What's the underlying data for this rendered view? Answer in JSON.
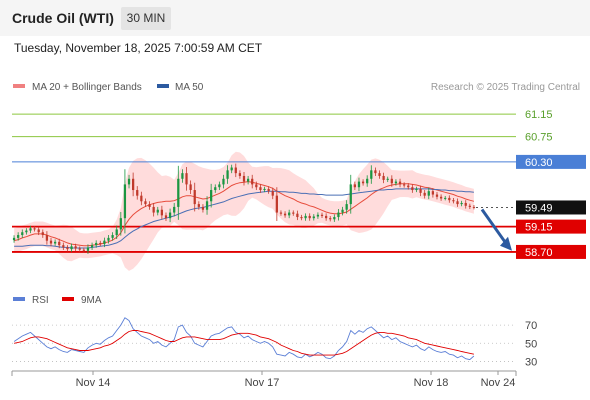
{
  "header": {
    "title": "Crude Oil (WTI)",
    "timeframe": "30 MIN"
  },
  "datetime": "Tuesday, November 18, 2025 7:00:59 AM CET",
  "legend": {
    "ma20": "MA 20 + Bollinger Bands",
    "ma50": "MA 50",
    "credit": "Research © 2025 Trading Central"
  },
  "rsi_legend": {
    "rsi": "RSI",
    "ma9": "9MA"
  },
  "colors": {
    "resistance": "#8cc63f",
    "pivot": "#4a7fd6",
    "support": "#e00000",
    "up": "#1a9641",
    "down": "#c0392b",
    "ma20": "#e74c3c",
    "ma50": "#4a6fb5",
    "bands": "#ffd6d6",
    "arrow": "#2c5aa0",
    "rsi": "#5b7fd6",
    "rsi_ma": "#e00000"
  },
  "chart_data": [
    {
      "type": "candlestick",
      "x_ticks": [
        "Nov 14",
        "Nov 17",
        "Nov 18",
        "Nov 24"
      ],
      "ylim": [
        58.45,
        61.4
      ],
      "levels": [
        {
          "value": 61.15,
          "label": "61.15",
          "kind": "resistance"
        },
        {
          "value": 60.75,
          "label": "60.75",
          "kind": "resistance"
        },
        {
          "value": 60.3,
          "label": "60.30",
          "kind": "pivot"
        },
        {
          "value": 59.49,
          "label": "59.49",
          "kind": "last"
        },
        {
          "value": 59.15,
          "label": "59.15",
          "kind": "support"
        },
        {
          "value": 58.7,
          "label": "58.70",
          "kind": "support"
        }
      ],
      "close": [
        58.95,
        59.0,
        59.05,
        59.08,
        59.12,
        59.1,
        59.05,
        59.0,
        58.9,
        58.85,
        58.88,
        58.82,
        58.78,
        58.75,
        58.8,
        58.76,
        58.74,
        58.72,
        58.78,
        58.82,
        58.86,
        58.84,
        58.9,
        58.95,
        59.0,
        59.1,
        59.3,
        59.9,
        60.0,
        59.8,
        59.7,
        59.6,
        59.55,
        59.5,
        59.4,
        59.45,
        59.35,
        59.3,
        59.4,
        59.5,
        60.0,
        60.1,
        59.9,
        59.8,
        59.55,
        59.5,
        59.45,
        59.6,
        59.8,
        59.85,
        59.9,
        60.0,
        60.15,
        60.2,
        60.1,
        60.05,
        59.95,
        60.0,
        59.9,
        59.85,
        59.8,
        59.82,
        59.78,
        59.7,
        59.4,
        59.38,
        59.35,
        59.4,
        59.38,
        59.32,
        59.3,
        59.34,
        59.3,
        59.33,
        59.36,
        59.34,
        59.3,
        59.28,
        59.32,
        59.4,
        59.45,
        59.55,
        59.9,
        59.85,
        59.95,
        59.92,
        60.0,
        60.15,
        60.1,
        60.05,
        59.98,
        60.0,
        59.92,
        59.95,
        59.9,
        59.88,
        59.85,
        59.8,
        59.82,
        59.75,
        59.7,
        59.78,
        59.72,
        59.68,
        59.65,
        59.66,
        59.62,
        59.6,
        59.55,
        59.57,
        59.52,
        59.5,
        59.49
      ],
      "ma20": [
        58.9,
        58.92,
        58.95,
        58.97,
        59.0,
        59.02,
        59.02,
        59.02,
        59.0,
        58.97,
        58.95,
        58.92,
        58.89,
        58.86,
        58.84,
        58.83,
        58.82,
        58.81,
        58.81,
        58.82,
        58.83,
        58.84,
        58.86,
        58.88,
        58.91,
        58.96,
        59.04,
        59.17,
        59.28,
        59.36,
        59.42,
        59.47,
        59.51,
        59.54,
        59.56,
        59.58,
        59.59,
        59.6,
        59.6,
        59.61,
        59.64,
        59.68,
        59.7,
        59.7,
        59.68,
        59.66,
        59.64,
        59.65,
        59.68,
        59.71,
        59.74,
        59.78,
        59.83,
        59.88,
        59.91,
        59.93,
        59.94,
        59.95,
        59.94,
        59.92,
        59.9,
        59.88,
        59.86,
        59.83,
        59.78,
        59.74,
        59.7,
        59.67,
        59.64,
        59.6,
        59.57,
        59.55,
        59.52,
        59.5,
        59.47,
        59.44,
        59.41,
        59.39,
        59.38,
        59.38,
        59.39,
        59.41,
        59.46,
        59.51,
        59.56,
        59.61,
        59.66,
        59.72,
        59.77,
        59.81,
        59.84,
        59.87,
        59.89,
        59.9,
        59.91,
        59.91,
        59.91,
        59.9,
        59.89,
        59.87,
        59.85,
        59.84,
        59.82,
        59.8,
        59.78,
        59.76,
        59.74,
        59.72,
        59.69,
        59.67,
        59.64,
        59.62,
        59.6
      ],
      "ma50": [
        58.8,
        58.8,
        58.8,
        58.81,
        58.82,
        58.82,
        58.82,
        58.82,
        58.81,
        58.81,
        58.8,
        58.79,
        58.78,
        58.78,
        58.77,
        58.77,
        58.77,
        58.77,
        58.77,
        58.78,
        58.79,
        58.8,
        58.81,
        58.82,
        58.84,
        58.86,
        58.9,
        58.96,
        59.02,
        59.07,
        59.11,
        59.15,
        59.18,
        59.21,
        59.24,
        59.26,
        59.28,
        59.3,
        59.32,
        59.34,
        59.37,
        59.4,
        59.43,
        59.45,
        59.47,
        59.48,
        59.49,
        59.51,
        59.53,
        59.55,
        59.57,
        59.59,
        59.62,
        59.65,
        59.67,
        59.69,
        59.71,
        59.73,
        59.74,
        59.75,
        59.76,
        59.77,
        59.78,
        59.78,
        59.78,
        59.77,
        59.77,
        59.76,
        59.76,
        59.75,
        59.74,
        59.74,
        59.73,
        59.73,
        59.72,
        59.72,
        59.71,
        59.71,
        59.71,
        59.71,
        59.71,
        59.72,
        59.73,
        59.74,
        59.75,
        59.76,
        59.77,
        59.78,
        59.79,
        59.8,
        59.8,
        59.81,
        59.81,
        59.82,
        59.82,
        59.82,
        59.82,
        59.82,
        59.82,
        59.82,
        59.82,
        59.82,
        59.81,
        59.81,
        59.8,
        59.8,
        59.79,
        59.79,
        59.78,
        59.78,
        59.77,
        59.77,
        59.76
      ]
    },
    {
      "type": "line",
      "name": "RSI",
      "x_ticks": [
        "Nov 14",
        "Nov 17",
        "Nov 18",
        "Nov 24"
      ],
      "y_ticks": [
        70,
        50,
        30
      ],
      "ylim": [
        25,
        80
      ],
      "rsi": [
        52,
        55,
        58,
        60,
        62,
        58,
        54,
        50,
        46,
        44,
        46,
        43,
        41,
        40,
        43,
        42,
        41,
        40,
        45,
        48,
        50,
        49,
        53,
        56,
        58,
        64,
        70,
        78,
        75,
        66,
        62,
        58,
        56,
        54,
        50,
        52,
        48,
        46,
        50,
        54,
        68,
        70,
        62,
        58,
        50,
        48,
        46,
        52,
        58,
        60,
        61,
        64,
        67,
        68,
        62,
        60,
        56,
        58,
        54,
        52,
        50,
        52,
        50,
        46,
        38,
        37,
        36,
        40,
        38,
        35,
        34,
        38,
        35,
        37,
        40,
        38,
        34,
        33,
        36,
        42,
        46,
        52,
        64,
        60,
        64,
        62,
        66,
        68,
        64,
        60,
        56,
        58,
        54,
        56,
        52,
        50,
        48,
        46,
        48,
        44,
        42,
        46,
        43,
        41,
        40,
        41,
        38,
        37,
        34,
        36,
        33,
        32,
        36
      ],
      "ma9": [
        50,
        51,
        52,
        54,
        56,
        57,
        57,
        56,
        55,
        53,
        51,
        49,
        47,
        45,
        44,
        43,
        42,
        42,
        42,
        43,
        44,
        45,
        47,
        48,
        50,
        53,
        56,
        60,
        63,
        64,
        64,
        63,
        62,
        61,
        59,
        57,
        55,
        53,
        52,
        52,
        54,
        56,
        57,
        57,
        57,
        56,
        55,
        54,
        54,
        54,
        54,
        55,
        57,
        59,
        60,
        61,
        61,
        61,
        60,
        59,
        57,
        56,
        55,
        53,
        51,
        48,
        46,
        44,
        42,
        41,
        39,
        38,
        37,
        37,
        37,
        37,
        37,
        37,
        37,
        38,
        39,
        41,
        44,
        47,
        50,
        53,
        56,
        59,
        61,
        62,
        62,
        61,
        61,
        60,
        59,
        58,
        56,
        55,
        54,
        52,
        50,
        49,
        48,
        47,
        46,
        45,
        44,
        43,
        42,
        41,
        40,
        39,
        38
      ]
    }
  ]
}
